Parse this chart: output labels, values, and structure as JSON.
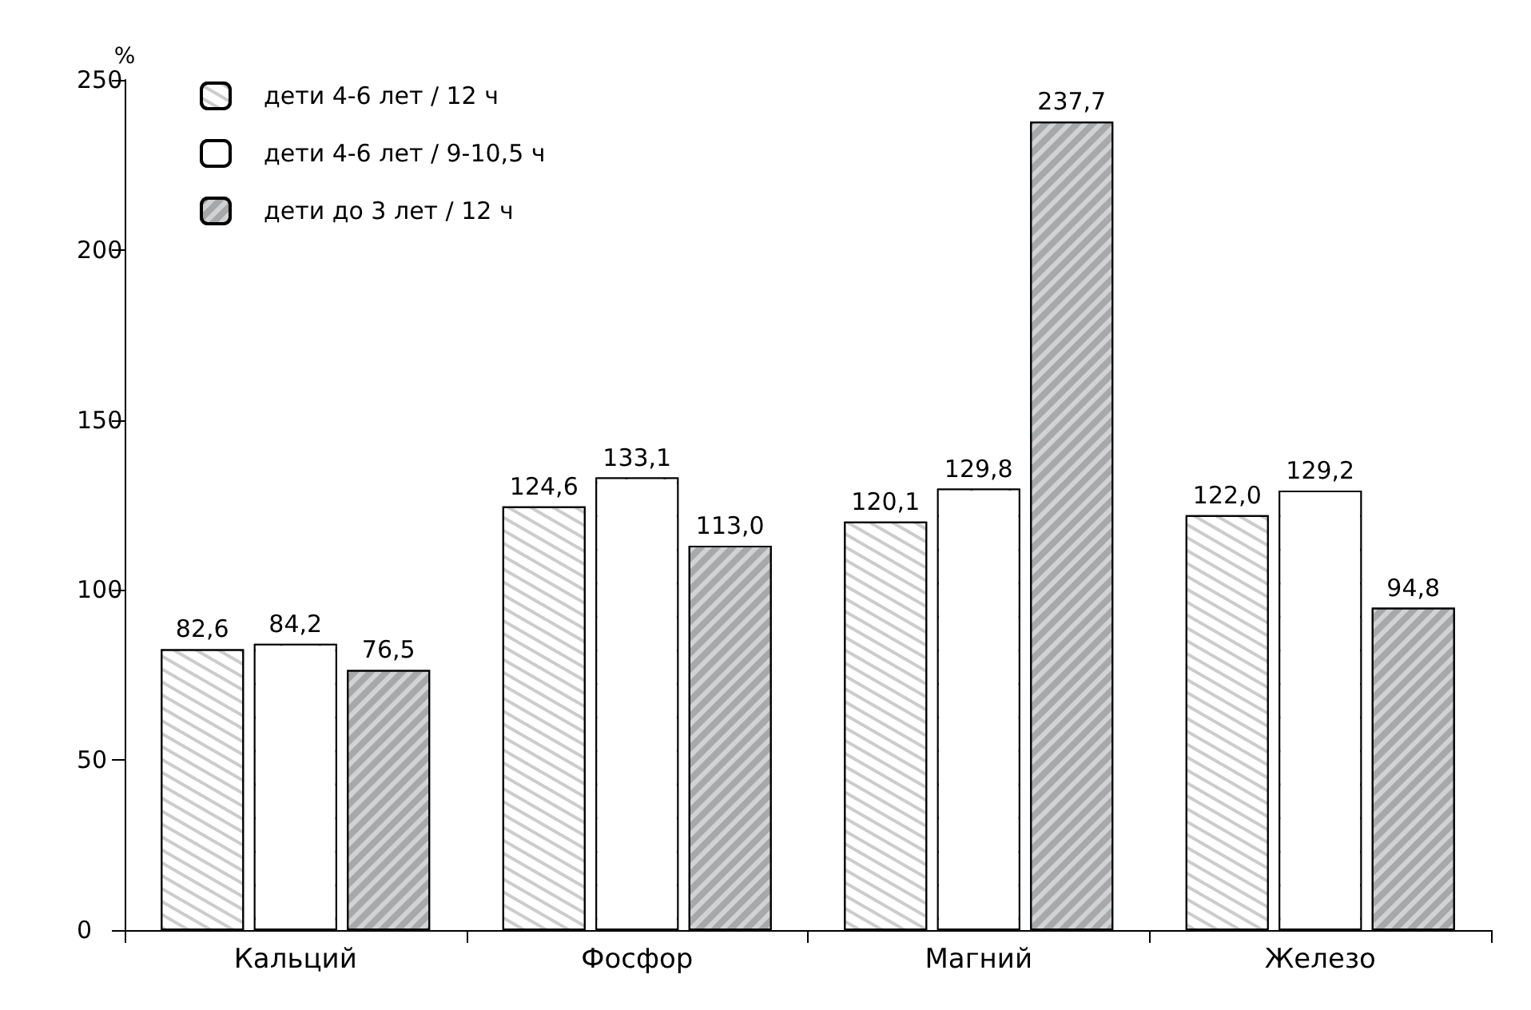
{
  "chart_data": {
    "type": "bar",
    "ylabel": "%",
    "categories": [
      "Кальций",
      "Фосфор",
      "Магний",
      "Железо"
    ],
    "series": [
      {
        "name": "дети 4-6 лет / 12 ч",
        "color": "#ffffff",
        "values": [
          82.6,
          124.6,
          120.1,
          122.0
        ],
        "value_labels": [
          "82,6",
          "124,6",
          "120,1",
          "122,0"
        ]
      },
      {
        "name": "дети 4-6 лет / 9-10,5 ч",
        "color": "#ffffff",
        "values": [
          84.2,
          133.1,
          129.8,
          129.2
        ],
        "value_labels": [
          "84,2",
          "133,1",
          "129,8",
          "129,2"
        ]
      },
      {
        "name": "дети до 3 лет / 12 ч",
        "color": "#d1d2d4",
        "values": [
          76.5,
          113.0,
          237.7,
          94.8
        ],
        "value_labels": [
          "76,5",
          "113,0",
          "237,7",
          "94,8"
        ]
      }
    ],
    "ylim": [
      0,
      250
    ],
    "yticks": [
      0,
      50,
      100,
      150,
      200,
      250
    ],
    "grid": false,
    "legend": "top left"
  }
}
